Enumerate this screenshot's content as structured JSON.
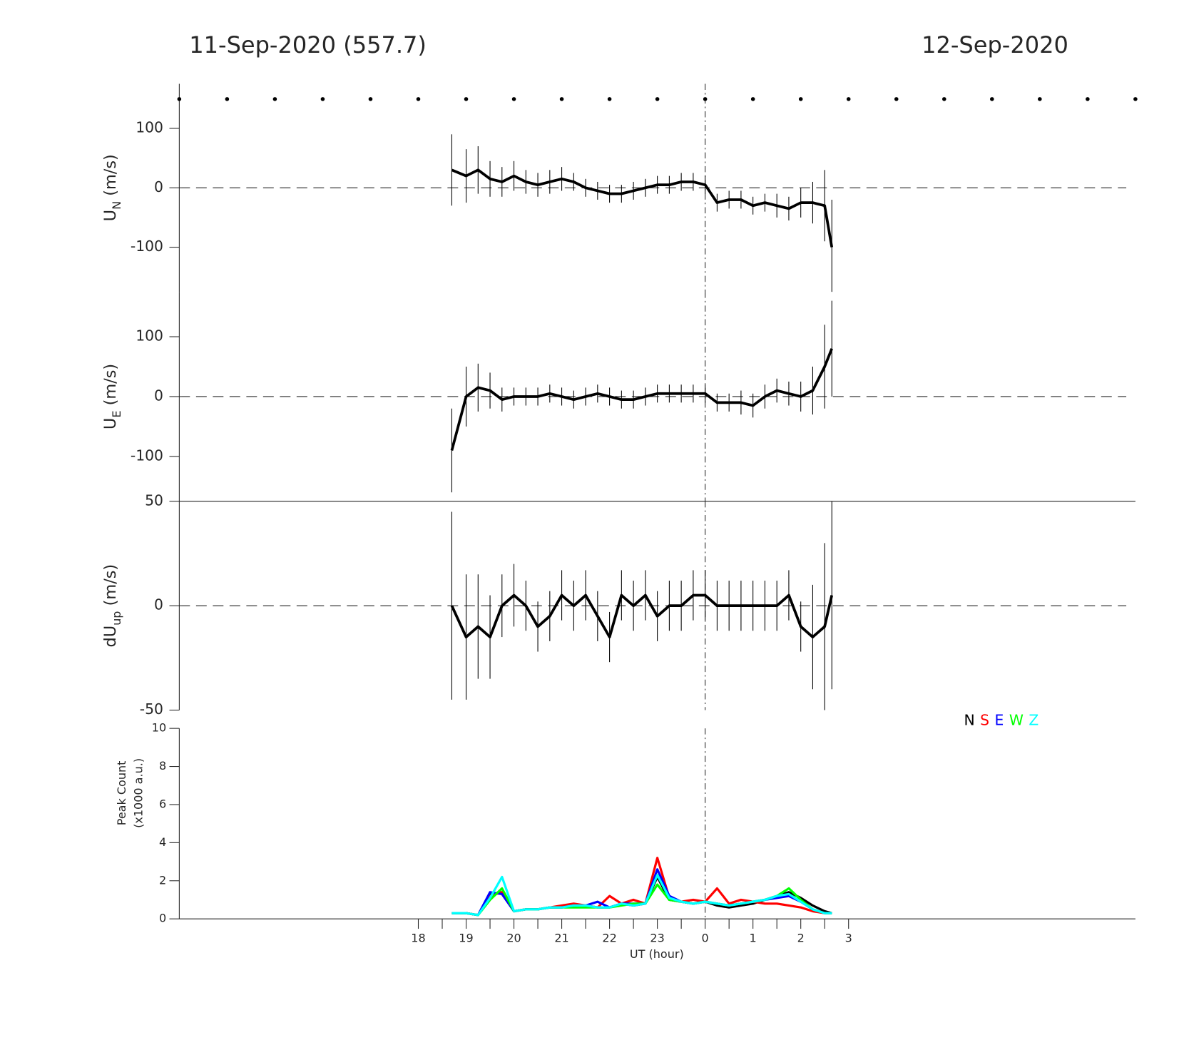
{
  "header": {
    "title_left": "11-Sep-2020 (557.7)",
    "title_right": "12-Sep-2020"
  },
  "chart_data": [
    {
      "type": "line",
      "ylabel": {
        "text": "U",
        "sub": "N",
        "unit": " (m/s)"
      },
      "xlim": [
        13,
        33
      ],
      "ylim": [
        -175,
        175
      ],
      "yticks": [
        -100,
        0,
        100
      ],
      "hline": 0,
      "vline": 24,
      "x": [
        18.7,
        19.0,
        19.25,
        19.5,
        19.75,
        20.0,
        20.25,
        20.5,
        20.75,
        21.0,
        21.25,
        21.5,
        21.75,
        22.0,
        22.25,
        22.5,
        22.75,
        23.0,
        23.25,
        23.5,
        23.75,
        24.0,
        24.25,
        24.5,
        24.75,
        25.0,
        25.25,
        25.5,
        25.75,
        26.0,
        26.25,
        26.5,
        26.65
      ],
      "series": [
        {
          "color": "#000000",
          "values": [
            30,
            20,
            30,
            15,
            10,
            20,
            10,
            5,
            10,
            15,
            10,
            0,
            -5,
            -10,
            -10,
            -5,
            0,
            5,
            5,
            10,
            10,
            5,
            -25,
            -20,
            -20,
            -30,
            -25,
            -30,
            -35,
            -25,
            -25,
            -30,
            -100
          ],
          "errors": [
            60,
            45,
            40,
            30,
            25,
            25,
            20,
            20,
            20,
            20,
            15,
            15,
            15,
            15,
            15,
            15,
            15,
            15,
            15,
            15,
            15,
            15,
            15,
            15,
            15,
            15,
            15,
            20,
            20,
            25,
            35,
            60,
            80
          ]
        }
      ]
    },
    {
      "type": "line",
      "ylabel": {
        "text": "U",
        "sub": "E",
        "unit": " (m/s)"
      },
      "xlim": [
        13,
        33
      ],
      "ylim": [
        -175,
        175
      ],
      "yticks": [
        -100,
        0,
        100
      ],
      "hline": 0,
      "vline": 24,
      "x": [
        18.7,
        19.0,
        19.25,
        19.5,
        19.75,
        20.0,
        20.25,
        20.5,
        20.75,
        21.0,
        21.25,
        21.5,
        21.75,
        22.0,
        22.25,
        22.5,
        22.75,
        23.0,
        23.25,
        23.5,
        23.75,
        24.0,
        24.25,
        24.5,
        24.75,
        25.0,
        25.25,
        25.5,
        25.75,
        26.0,
        26.25,
        26.5,
        26.65
      ],
      "series": [
        {
          "color": "#000000",
          "values": [
            -90,
            0,
            15,
            10,
            -5,
            0,
            0,
            0,
            5,
            0,
            -5,
            0,
            5,
            0,
            -5,
            -5,
            0,
            5,
            5,
            5,
            5,
            5,
            -10,
            -10,
            -10,
            -15,
            0,
            10,
            5,
            0,
            10,
            50,
            80
          ],
          "errors": [
            70,
            50,
            40,
            30,
            20,
            15,
            15,
            15,
            15,
            15,
            15,
            15,
            15,
            15,
            15,
            15,
            15,
            15,
            15,
            15,
            15,
            15,
            15,
            15,
            20,
            20,
            20,
            20,
            20,
            25,
            40,
            70,
            80
          ]
        }
      ]
    },
    {
      "type": "line",
      "ylabel": {
        "text": "dU",
        "sub": "up",
        "unit": " (m/s)"
      },
      "xlim": [
        13,
        33
      ],
      "ylim": [
        -50,
        50
      ],
      "yticks": [
        -50,
        0,
        50
      ],
      "hline": 0,
      "vline": 24,
      "frame_top": true,
      "x": [
        18.7,
        19.0,
        19.25,
        19.5,
        19.75,
        20.0,
        20.25,
        20.5,
        20.75,
        21.0,
        21.25,
        21.5,
        21.75,
        22.0,
        22.25,
        22.5,
        22.75,
        23.0,
        23.25,
        23.5,
        23.75,
        24.0,
        24.25,
        24.5,
        24.75,
        25.0,
        25.25,
        25.5,
        25.75,
        26.0,
        26.25,
        26.5,
        26.65
      ],
      "series": [
        {
          "color": "#000000",
          "values": [
            0,
            -15,
            -10,
            -15,
            0,
            5,
            0,
            -10,
            -5,
            5,
            0,
            5,
            -5,
            -15,
            5,
            0,
            5,
            -5,
            0,
            0,
            5,
            5,
            0,
            0,
            0,
            0,
            0,
            0,
            5,
            -10,
            -15,
            -10,
            5
          ],
          "errors": [
            45,
            30,
            25,
            20,
            15,
            15,
            12,
            12,
            12,
            12,
            12,
            12,
            12,
            12,
            12,
            12,
            12,
            12,
            12,
            12,
            12,
            12,
            12,
            12,
            12,
            12,
            12,
            12,
            12,
            12,
            25,
            40,
            45
          ]
        }
      ]
    },
    {
      "type": "line",
      "ylabel": [
        "Peak Count",
        "(x1000 a.u.)"
      ],
      "xlabel": "UT (hour)",
      "xlim": [
        13,
        33
      ],
      "ylim": [
        0,
        10
      ],
      "yticks": [
        0,
        2,
        4,
        6,
        8,
        10
      ],
      "vline": 24,
      "xticks": [
        18,
        19,
        20,
        21,
        22,
        23,
        {
          "value": 24,
          "label": "0"
        },
        {
          "value": 25,
          "label": "1"
        },
        {
          "value": 26,
          "label": "2"
        },
        {
          "value": 27,
          "label": "3"
        }
      ],
      "xminorticks": [
        18.5,
        19.5,
        20.5,
        21.5,
        22.5,
        23.5,
        24.5,
        25.5,
        26.5
      ],
      "x": [
        18.7,
        19.0,
        19.25,
        19.5,
        19.75,
        20.0,
        20.25,
        20.5,
        20.75,
        21.0,
        21.25,
        21.5,
        21.75,
        22.0,
        22.25,
        22.5,
        22.75,
        23.0,
        23.25,
        23.5,
        23.75,
        24.0,
        24.25,
        24.5,
        24.75,
        25.0,
        25.25,
        25.5,
        25.75,
        26.0,
        26.25,
        26.5,
        26.65
      ],
      "series": [
        {
          "name": "N",
          "color": "#000000",
          "values": [
            0.3,
            0.3,
            0.2,
            1.3,
            1.4,
            0.4,
            0.5,
            0.5,
            0.6,
            0.6,
            0.7,
            0.7,
            0.6,
            0.6,
            0.8,
            0.7,
            0.8,
            2.2,
            1.0,
            0.9,
            0.8,
            0.9,
            0.7,
            0.6,
            0.7,
            0.8,
            1.0,
            1.2,
            1.4,
            1.1,
            0.7,
            0.4,
            0.3
          ]
        },
        {
          "name": "S",
          "color": "#ff0000",
          "values": [
            0.3,
            0.3,
            0.2,
            1.2,
            1.4,
            0.4,
            0.5,
            0.5,
            0.6,
            0.7,
            0.8,
            0.7,
            0.6,
            1.2,
            0.8,
            1.0,
            0.8,
            3.2,
            1.1,
            0.9,
            1.0,
            0.9,
            1.6,
            0.8,
            1.0,
            0.9,
            0.8,
            0.8,
            0.7,
            0.6,
            0.4,
            0.3,
            0.3
          ]
        },
        {
          "name": "E",
          "color": "#0000ff",
          "values": [
            0.3,
            0.3,
            0.2,
            1.4,
            1.3,
            0.4,
            0.5,
            0.5,
            0.6,
            0.6,
            0.7,
            0.7,
            0.9,
            0.6,
            0.8,
            0.8,
            0.8,
            2.6,
            1.2,
            0.9,
            0.8,
            0.9,
            0.8,
            0.7,
            0.8,
            0.9,
            1.0,
            1.1,
            1.2,
            0.9,
            0.5,
            0.3,
            0.3
          ]
        },
        {
          "name": "W",
          "color": "#00ff00",
          "values": [
            0.3,
            0.3,
            0.2,
            1.0,
            1.6,
            0.4,
            0.5,
            0.5,
            0.6,
            0.6,
            0.6,
            0.6,
            0.6,
            0.6,
            0.7,
            0.8,
            0.8,
            1.8,
            1.0,
            0.9,
            0.8,
            0.9,
            0.8,
            0.7,
            0.8,
            0.9,
            1.0,
            1.2,
            1.6,
            1.0,
            0.5,
            0.3,
            0.3
          ]
        },
        {
          "name": "Z",
          "color": "#00ffff",
          "values": [
            0.3,
            0.3,
            0.2,
            1.1,
            2.2,
            0.4,
            0.5,
            0.5,
            0.6,
            0.6,
            0.7,
            0.7,
            0.6,
            0.6,
            0.8,
            0.7,
            0.8,
            2.3,
            1.1,
            0.9,
            0.8,
            0.9,
            0.8,
            0.7,
            0.8,
            0.9,
            1.0,
            1.2,
            1.3,
            0.9,
            0.5,
            0.3,
            0.3
          ]
        }
      ]
    }
  ]
}
